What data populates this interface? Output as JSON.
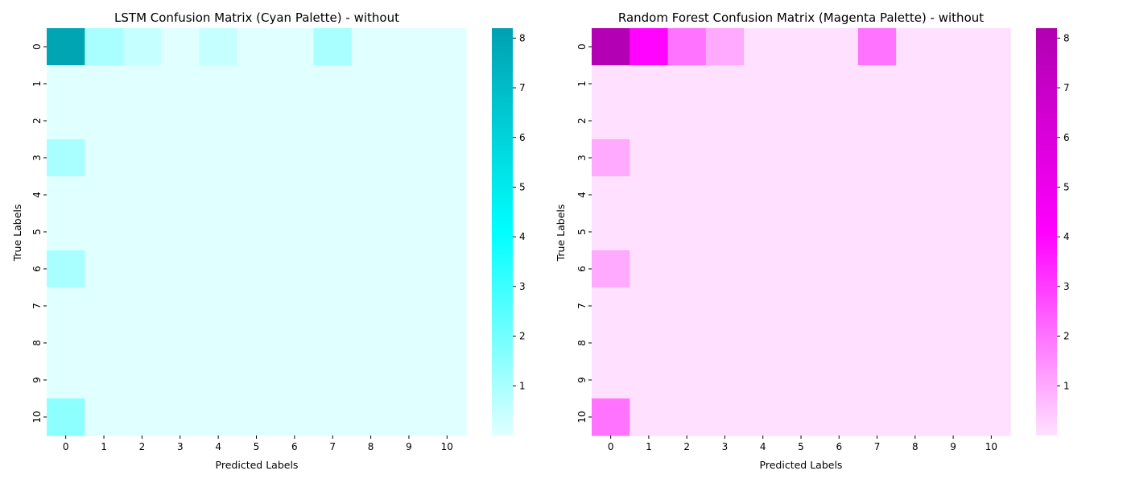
{
  "chart_data": [
    {
      "type": "heatmap",
      "title": "LSTM Confusion Matrix (Cyan Palette) - without",
      "xlabel": "Predicted Labels",
      "ylabel": "True Labels",
      "x_ticks": [
        "0",
        "1",
        "2",
        "3",
        "4",
        "5",
        "6",
        "7",
        "8",
        "9",
        "10"
      ],
      "y_ticks": [
        "0",
        "1",
        "2",
        "3",
        "4",
        "5",
        "6",
        "7",
        "8",
        "9",
        "10"
      ],
      "matrix": [
        [
          8,
          1,
          0.5,
          0,
          0.5,
          0,
          0,
          1,
          0,
          0,
          0
        ],
        [
          0,
          0,
          0,
          0,
          0,
          0,
          0,
          0,
          0,
          0,
          0
        ],
        [
          0,
          0,
          0,
          0,
          0,
          0,
          0,
          0,
          0,
          0,
          0
        ],
        [
          1,
          0,
          0,
          0,
          0,
          0,
          0,
          0,
          0,
          0,
          0
        ],
        [
          0,
          0,
          0,
          0,
          0,
          0,
          0,
          0,
          0,
          0,
          0
        ],
        [
          0,
          0,
          0,
          0,
          0,
          0,
          0,
          0,
          0,
          0,
          0
        ],
        [
          1,
          0,
          0,
          0,
          0,
          0,
          0,
          0,
          0,
          0,
          0
        ],
        [
          0,
          0,
          0,
          0,
          0,
          0,
          0,
          0,
          0,
          0,
          0
        ],
        [
          0,
          0,
          0,
          0,
          0,
          0,
          0,
          0,
          0,
          0,
          0
        ],
        [
          0,
          0,
          0,
          0,
          0,
          0,
          0,
          0,
          0,
          0,
          0
        ],
        [
          1.5,
          0,
          0,
          0,
          0,
          0,
          0,
          0,
          0,
          0,
          0
        ]
      ],
      "vmin": 0,
      "vmax": 8.2,
      "colorbar_ticks": [
        1,
        2,
        3,
        4,
        5,
        6,
        7,
        8
      ],
      "colorscale": [
        "#e0ffff",
        "#00ffff",
        "#00a0b0"
      ]
    },
    {
      "type": "heatmap",
      "title": "Random Forest Confusion Matrix (Magenta Palette) - without",
      "xlabel": "Predicted Labels",
      "ylabel": "True Labels",
      "x_ticks": [
        "0",
        "1",
        "2",
        "3",
        "4",
        "5",
        "6",
        "7",
        "8",
        "9",
        "10"
      ],
      "y_ticks": [
        "0",
        "1",
        "2",
        "3",
        "4",
        "5",
        "6",
        "7",
        "8",
        "9",
        "10"
      ],
      "matrix": [
        [
          8,
          4,
          2,
          1,
          0,
          0,
          0,
          2,
          0,
          0,
          0
        ],
        [
          0,
          0,
          0,
          0,
          0,
          0,
          0,
          0,
          0,
          0,
          0
        ],
        [
          0,
          0,
          0,
          0,
          0,
          0,
          0,
          0,
          0,
          0,
          0
        ],
        [
          1,
          0,
          0,
          0,
          0,
          0,
          0,
          0,
          0,
          0,
          0
        ],
        [
          0,
          0,
          0,
          0,
          0,
          0,
          0,
          0,
          0,
          0,
          0
        ],
        [
          0,
          0,
          0,
          0,
          0,
          0,
          0,
          0,
          0,
          0,
          0
        ],
        [
          1,
          0,
          0,
          0,
          0,
          0,
          0,
          0,
          0,
          0,
          0
        ],
        [
          0,
          0,
          0,
          0,
          0,
          0,
          0,
          0,
          0,
          0,
          0
        ],
        [
          0,
          0,
          0,
          0,
          0,
          0,
          0,
          0,
          0,
          0,
          0
        ],
        [
          0,
          0,
          0,
          0,
          0,
          0,
          0,
          0,
          0,
          0,
          0
        ],
        [
          2,
          0,
          0,
          0,
          0,
          0,
          0,
          0,
          0,
          0,
          0
        ]
      ],
      "vmin": 0,
      "vmax": 8.2,
      "colorbar_ticks": [
        1,
        2,
        3,
        4,
        5,
        6,
        7,
        8
      ],
      "colorscale": [
        "#ffe0ff",
        "#ff00ff",
        "#b000b0"
      ]
    }
  ]
}
